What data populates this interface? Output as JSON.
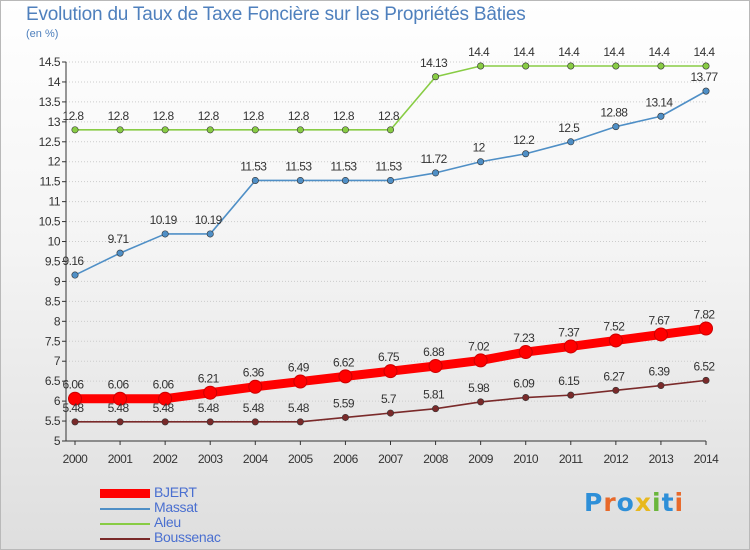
{
  "title": "Evolution du Taux de Taxe Foncière sur les Propriétés Bâties",
  "unit": "(en %)",
  "logo": "Proxiti",
  "colors": {
    "BJERT": "#ff0000",
    "Massat": "#4f8fc6",
    "Aleu": "#88cc44",
    "Boussenac": "#7a2a2a",
    "axis": "#333333",
    "grid": "#cccccc",
    "label": "#333333",
    "title": "#4f80bd",
    "legend_text": "#4a6fd0"
  },
  "chart_data": {
    "type": "line",
    "x": [
      "2000",
      "2001",
      "2002",
      "2003",
      "2004",
      "2005",
      "2006",
      "2007",
      "2008",
      "2009",
      "2010",
      "2011",
      "2012",
      "2013",
      "2014"
    ],
    "ylim": [
      5,
      14.5
    ],
    "yticks": [
      "5",
      "5.5",
      "6",
      "6.5",
      "7",
      "7.5",
      "8",
      "8.5",
      "9",
      "9.5",
      "10",
      "10.5",
      "11",
      "11.5",
      "12",
      "12.5",
      "13",
      "13.5",
      "14",
      "14.5"
    ],
    "legend_position": "bottom-left",
    "series": [
      {
        "name": "BJERT",
        "values": [
          6.06,
          6.06,
          6.06,
          6.21,
          6.36,
          6.49,
          6.62,
          6.75,
          6.88,
          7.02,
          7.23,
          7.37,
          7.52,
          7.67,
          7.82
        ],
        "labels": [
          "6.06",
          "6.06",
          "6.06",
          "6.21",
          "6.36",
          "6.49",
          "6.62",
          "6.75",
          "6.88",
          "7.02",
          "7.23",
          "7.37",
          "7.52",
          "7.67",
          "7.82"
        ]
      },
      {
        "name": "Massat",
        "values": [
          9.16,
          9.71,
          10.19,
          10.19,
          11.53,
          11.53,
          11.53,
          11.53,
          11.72,
          12,
          12.2,
          12.5,
          12.88,
          13.14,
          13.77
        ],
        "labels": [
          "9.16",
          "9.71",
          "10.19",
          "10.19",
          "11.53",
          "11.53",
          "11.53",
          "11.53",
          "11.72",
          "12",
          "12.2",
          "12.5",
          "12.88",
          "13.14",
          "13.77"
        ]
      },
      {
        "name": "Aleu",
        "values": [
          12.8,
          12.8,
          12.8,
          12.8,
          12.8,
          12.8,
          12.8,
          12.8,
          14.13,
          14.4,
          14.4,
          14.4,
          14.4,
          14.4,
          14.4
        ],
        "labels": [
          "12.8",
          "12.8",
          "12.8",
          "12.8",
          "12.8",
          "12.8",
          "12.8",
          "12.8",
          "14.13",
          "14.4",
          "14.4",
          "14.4",
          "14.4",
          "14.4",
          "14.4"
        ]
      },
      {
        "name": "Boussenac",
        "values": [
          5.48,
          5.48,
          5.48,
          5.48,
          5.48,
          5.48,
          5.59,
          5.7,
          5.81,
          5.98,
          6.09,
          6.15,
          6.27,
          6.39,
          6.52
        ],
        "labels": [
          "5.48",
          "5.48",
          "5.48",
          "5.48",
          "5.48",
          "5.48",
          "5.59",
          "5.7",
          "5.81",
          "5.98",
          "6.09",
          "6.15",
          "6.27",
          "6.39",
          "6.52"
        ]
      }
    ]
  }
}
